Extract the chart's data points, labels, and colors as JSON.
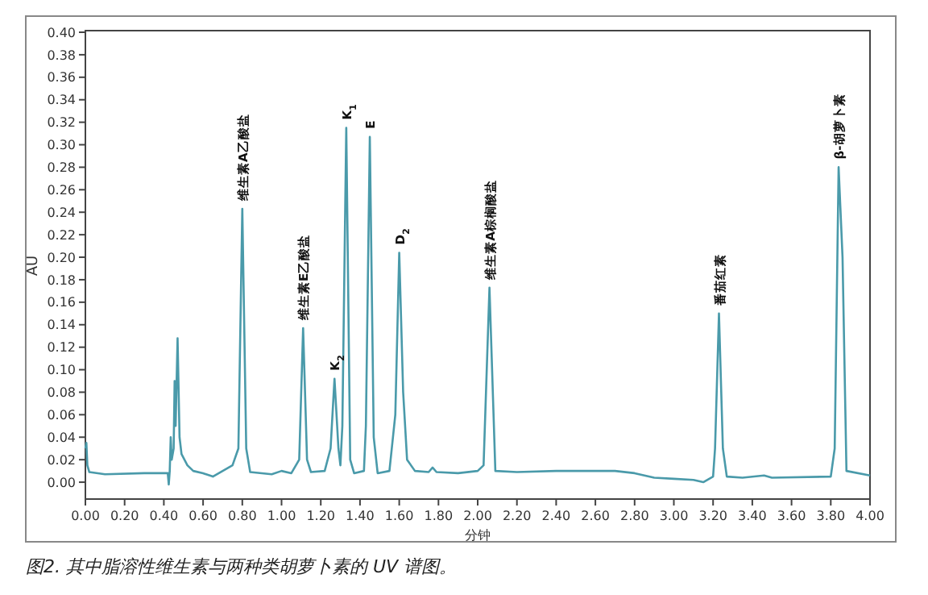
{
  "chart_data": {
    "type": "line",
    "xlabel": "分钟",
    "ylabel": "AU",
    "xlim": [
      0,
      4
    ],
    "ylim": [
      -0.015,
      0.4
    ],
    "xticks": [
      {
        "value": 0,
        "label": "0.00"
      },
      {
        "value": 0.2,
        "label": "0.20"
      },
      {
        "value": 0.4,
        "label": "0.40"
      },
      {
        "value": 0.6,
        "label": "0.60"
      },
      {
        "value": 0.8,
        "label": "0.80"
      },
      {
        "value": 1,
        "label": "1.00"
      },
      {
        "value": 1.2,
        "label": "1.20"
      },
      {
        "value": 1.4,
        "label": "1.40"
      },
      {
        "value": 1.6,
        "label": "1.60"
      },
      {
        "value": 1.8,
        "label": "1.80"
      },
      {
        "value": 2,
        "label": "2.00"
      },
      {
        "value": 2.2,
        "label": "2.20"
      },
      {
        "value": 2.4,
        "label": "2.40"
      },
      {
        "value": 2.6,
        "label": "2.60"
      },
      {
        "value": 2.8,
        "label": "2.80"
      },
      {
        "value": 3,
        "label": "3.00"
      },
      {
        "value": 3.2,
        "label": "3.20"
      },
      {
        "value": 3.4,
        "label": "3.40"
      },
      {
        "value": 3.6,
        "label": "3.60"
      },
      {
        "value": 3.8,
        "label": "3.80"
      },
      {
        "value": 4,
        "label": "4.00"
      }
    ],
    "yticks": [
      {
        "value": 0,
        "label": "0.00"
      },
      {
        "value": 0.02,
        "label": "0.02"
      },
      {
        "value": 0.04,
        "label": "0.04"
      },
      {
        "value": 0.06,
        "label": "0.06"
      },
      {
        "value": 0.08,
        "label": "0.08"
      },
      {
        "value": 0.1,
        "label": "0.10"
      },
      {
        "value": 0.12,
        "label": "0.12"
      },
      {
        "value": 0.14,
        "label": "0.14"
      },
      {
        "value": 0.16,
        "label": "0.16"
      },
      {
        "value": 0.18,
        "label": "0.18"
      },
      {
        "value": 0.2,
        "label": "0.20"
      },
      {
        "value": 0.22,
        "label": "0.22"
      },
      {
        "value": 0.24,
        "label": "0.24"
      },
      {
        "value": 0.26,
        "label": "0.26"
      },
      {
        "value": 0.28,
        "label": "0.28"
      },
      {
        "value": 0.3,
        "label": "0.30"
      },
      {
        "value": 0.32,
        "label": "0.32"
      },
      {
        "value": 0.34,
        "label": "0.34"
      },
      {
        "value": 0.36,
        "label": "0.36"
      },
      {
        "value": 0.38,
        "label": "0.38"
      },
      {
        "value": 0.4,
        "label": "0.40"
      }
    ],
    "grid": false,
    "marker": "none",
    "line_style": "solid",
    "series": [
      {
        "color": "#4a9aaa",
        "x": [
          0,
          0.005,
          0.01,
          0.02,
          0.1,
          0.3,
          0.42,
          0.425,
          0.43,
          0.435,
          0.44,
          0.45,
          0.455,
          0.46,
          0.47,
          0.48,
          0.49,
          0.52,
          0.55,
          0.6,
          0.65,
          0.7,
          0.75,
          0.78,
          0.8,
          0.82,
          0.84,
          0.95,
          1,
          1.05,
          1.09,
          1.11,
          1.13,
          1.15,
          1.22,
          1.25,
          1.27,
          1.29,
          1.3,
          1.31,
          1.33,
          1.35,
          1.37,
          1.42,
          1.43,
          1.45,
          1.47,
          1.49,
          1.55,
          1.58,
          1.6,
          1.62,
          1.64,
          1.68,
          1.75,
          1.77,
          1.79,
          1.9,
          2,
          2.03,
          2.06,
          2.09,
          2.2,
          2.4,
          2.7,
          2.8,
          2.9,
          3,
          3.1,
          3.15,
          3.2,
          3.21,
          3.23,
          3.25,
          3.27,
          3.35,
          3.46,
          3.5,
          3.8,
          3.82,
          3.84,
          3.86,
          3.88,
          4
        ],
        "values": [
          0.03,
          0.035,
          0.015,
          0.009,
          0.007,
          0.008,
          0.008,
          -0.002,
          0.01,
          0.04,
          0.02,
          0.03,
          0.09,
          0.05,
          0.128,
          0.04,
          0.025,
          0.015,
          0.01,
          0.008,
          0.005,
          0.01,
          0.015,
          0.03,
          0.243,
          0.03,
          0.009,
          0.007,
          0.01,
          0.008,
          0.02,
          0.137,
          0.02,
          0.009,
          0.01,
          0.03,
          0.092,
          0.03,
          0.015,
          0.05,
          0.315,
          0.02,
          0.008,
          0.01,
          0.05,
          0.307,
          0.04,
          0.008,
          0.01,
          0.06,
          0.204,
          0.08,
          0.02,
          0.01,
          0.009,
          0.013,
          0.009,
          0.008,
          0.01,
          0.015,
          0.173,
          0.01,
          0.009,
          0.01,
          0.01,
          0.008,
          0.004,
          0.003,
          0.002,
          0,
          0.005,
          0.03,
          0.15,
          0.03,
          0.005,
          0.004,
          0.006,
          0.004,
          0.005,
          0.03,
          0.28,
          0.2,
          0.01,
          0.006
        ]
      }
    ],
    "annotations": [
      {
        "text": "维生素A乙酸盐",
        "x": 0.8,
        "y": 0.243
      },
      {
        "text": "维生素E乙酸盐",
        "x": 1.11,
        "y": 0.137
      },
      {
        "text": "K$_{2}$",
        "x": 1.27,
        "y": 0.092
      },
      {
        "text": "K$_{1}$",
        "x": 1.33,
        "y": 0.315
      },
      {
        "text": "E",
        "x": 1.45,
        "y": 0.307
      },
      {
        "text": "D$_{2}$",
        "x": 1.6,
        "y": 0.204
      },
      {
        "text": "维生素A棕榈酸盐",
        "x": 2.06,
        "y": 0.173
      },
      {
        "text": "番茄红素",
        "x": 3.23,
        "y": 0.15
      },
      {
        "text": "β-胡萝卜素",
        "x": 3.84,
        "y": 0.28
      },
      "图2. 其中脂溶性维生素与两种类胡萝卜素的 UV 谱图。"
    ]
  }
}
